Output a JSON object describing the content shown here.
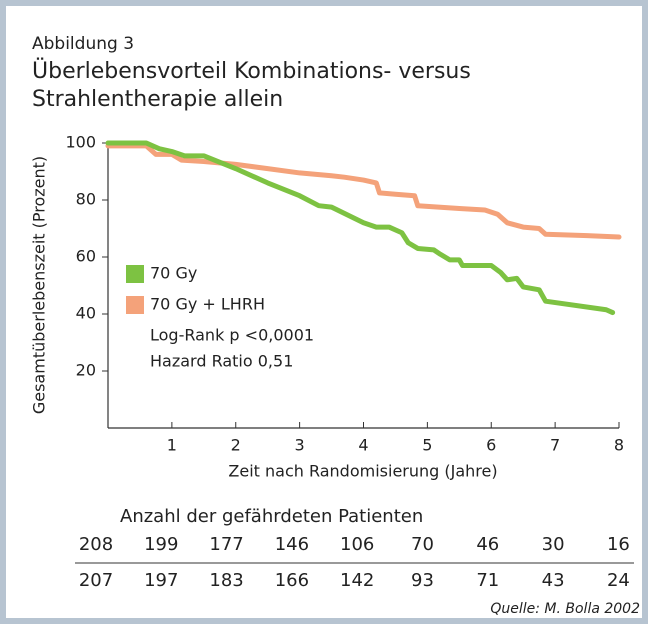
{
  "figure_label": "Abbildung 3",
  "chart_data": {
    "type": "line",
    "title": "Überlebensvorteil Kombinations- versus Strahlentherapie allein",
    "x_label": "Zeit nach Randomisierung (Jahre)",
    "y_label": "Gesamtüberlebenszeit (Prozent)",
    "xlim": [
      0,
      8
    ],
    "ylim": [
      0,
      100
    ],
    "xticks": [
      1,
      2,
      3,
      4,
      5,
      6,
      7,
      8
    ],
    "yticks": [
      20,
      40,
      60,
      80,
      100
    ],
    "series": [
      {
        "name": "70 Gy",
        "color": "#7dc242",
        "x": [
          0,
          0.6,
          0.8,
          1.0,
          1.2,
          1.5,
          2,
          2.5,
          3,
          3.3,
          3.5,
          4,
          4.2,
          4.4,
          4.6,
          4.7,
          4.85,
          5.1,
          5.2,
          5.35,
          5.5,
          5.55,
          6,
          6.15,
          6.25,
          6.4,
          6.5,
          6.75,
          6.85,
          7.8,
          7.9
        ],
        "values": [
          100,
          100,
          98,
          97,
          95.5,
          95.5,
          91,
          86,
          81.5,
          78,
          77.5,
          72,
          70.5,
          70.5,
          68.5,
          65,
          63,
          62.5,
          61,
          59,
          59,
          57,
          57,
          54.5,
          52,
          52.5,
          49.5,
          48.5,
          44.5,
          41.5,
          40.5
        ]
      },
      {
        "name": "70 Gy + LHRH",
        "color": "#f4a27a",
        "x": [
          0,
          0.6,
          0.75,
          1,
          1.15,
          1.5,
          2,
          2.5,
          3,
          3.5,
          3.7,
          4,
          4.2,
          4.25,
          4.5,
          4.8,
          4.85,
          5.5,
          5.9,
          6.1,
          6.25,
          6.5,
          6.75,
          6.85,
          7.5,
          8
        ],
        "values": [
          99,
          99,
          96,
          96,
          94,
          93.5,
          92.5,
          91,
          89.5,
          88.5,
          88,
          87,
          86,
          82.5,
          82,
          81.5,
          78,
          77,
          76.5,
          75,
          72,
          70.5,
          70,
          68,
          67.5,
          67
        ]
      }
    ],
    "annotations": [
      "Log-Rank p <0,0001",
      "Hazard Ratio 0,51"
    ]
  },
  "risk_table": {
    "title": "Anzahl der gefährdeten Patienten",
    "rows": [
      [
        "208",
        "199",
        "177",
        "146",
        "106",
        "70",
        "46",
        "30",
        "16"
      ],
      [
        "207",
        "197",
        "183",
        "166",
        "142",
        "93",
        "71",
        "43",
        "24"
      ]
    ]
  },
  "source": "Quelle: M. Bolla 2002"
}
